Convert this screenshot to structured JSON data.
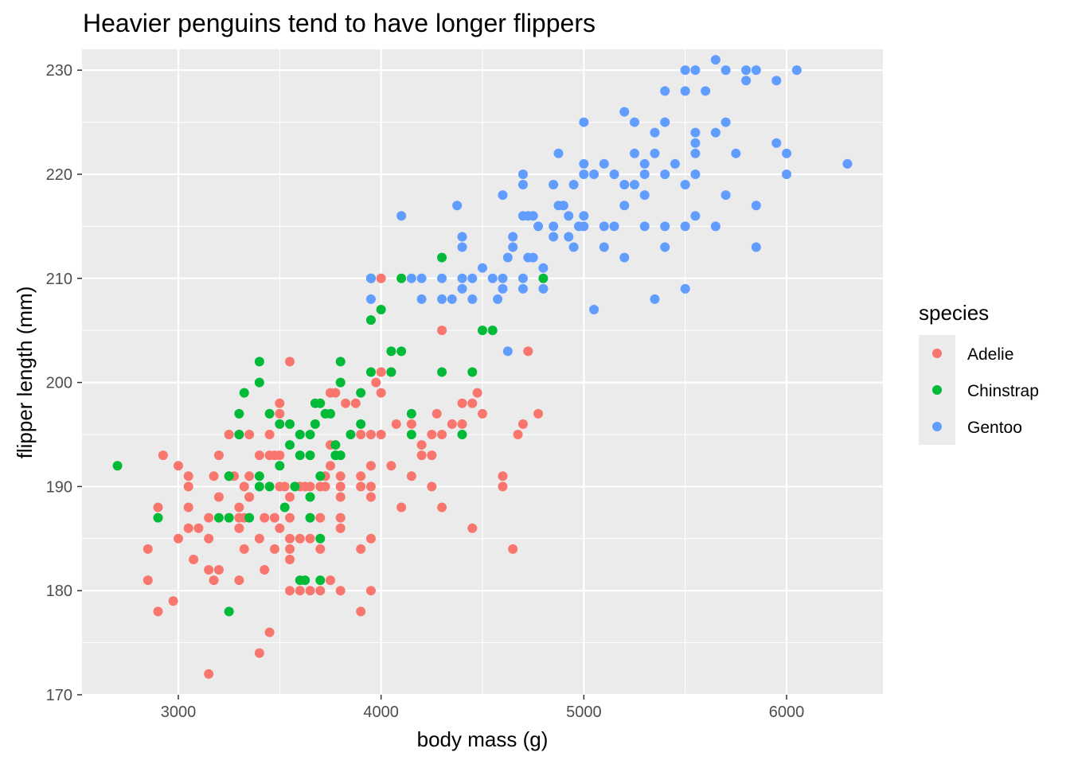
{
  "chart_data": {
    "type": "scatter",
    "title": "Heavier penguins tend to have longer flippers",
    "xlabel": "body mass (g)",
    "ylabel": "flipper length (mm)",
    "xlim": [
      2525,
      6475
    ],
    "ylim": [
      170,
      232
    ],
    "x_ticks": [
      3000,
      4000,
      5000,
      6000
    ],
    "x_tick_labels": [
      "3000",
      "4000",
      "5000",
      "6000"
    ],
    "y_ticks": [
      170,
      180,
      190,
      200,
      210,
      220,
      230
    ],
    "y_tick_labels": [
      "170",
      "180",
      "190",
      "200",
      "210",
      "220",
      "230"
    ],
    "x_minor_ticks": [
      2500,
      3500,
      4500,
      5500,
      6500
    ],
    "y_minor_ticks": [
      175,
      185,
      195,
      205,
      215,
      225
    ],
    "grid": true,
    "legend": {
      "title": "species",
      "position": "right",
      "entries": [
        "Adelie",
        "Chinstrap",
        "Gentoo"
      ]
    },
    "colors": {
      "panel_background": "#ebebeb",
      "grid": "#ffffff",
      "Adelie": "#f8766d",
      "Chinstrap": "#00ba38",
      "Gentoo": "#619cff"
    },
    "series": [
      {
        "name": "Adelie",
        "points": [
          [
            2850,
            184
          ],
          [
            2850,
            181
          ],
          [
            2900,
            178
          ],
          [
            2900,
            188
          ],
          [
            2925,
            193
          ],
          [
            2975,
            179
          ],
          [
            3000,
            185
          ],
          [
            3000,
            192
          ],
          [
            3050,
            186
          ],
          [
            3050,
            188
          ],
          [
            3050,
            190
          ],
          [
            3050,
            191
          ],
          [
            3075,
            183
          ],
          [
            3100,
            186
          ],
          [
            3150,
            187
          ],
          [
            3150,
            185
          ],
          [
            3150,
            182
          ],
          [
            3150,
            172
          ],
          [
            3175,
            191
          ],
          [
            3175,
            181
          ],
          [
            3200,
            189
          ],
          [
            3200,
            193
          ],
          [
            3200,
            182
          ],
          [
            3250,
            195
          ],
          [
            3250,
            191
          ],
          [
            3275,
            191
          ],
          [
            3300,
            186
          ],
          [
            3300,
            187
          ],
          [
            3300,
            188
          ],
          [
            3300,
            195
          ],
          [
            3300,
            181
          ],
          [
            3325,
            184
          ],
          [
            3325,
            190
          ],
          [
            3325,
            187
          ],
          [
            3350,
            189
          ],
          [
            3350,
            191
          ],
          [
            3350,
            195
          ],
          [
            3350,
            189
          ],
          [
            3400,
            193
          ],
          [
            3400,
            185
          ],
          [
            3400,
            174
          ],
          [
            3425,
            187
          ],
          [
            3425,
            182
          ],
          [
            3450,
            176
          ],
          [
            3450,
            195
          ],
          [
            3450,
            193
          ],
          [
            3475,
            193
          ],
          [
            3475,
            184
          ],
          [
            3475,
            187
          ],
          [
            3500,
            193
          ],
          [
            3500,
            186
          ],
          [
            3500,
            198
          ],
          [
            3500,
            197
          ],
          [
            3500,
            190
          ],
          [
            3525,
            190
          ],
          [
            3550,
            180
          ],
          [
            3550,
            183
          ],
          [
            3550,
            184
          ],
          [
            3550,
            185
          ],
          [
            3550,
            187
          ],
          [
            3550,
            189
          ],
          [
            3550,
            202
          ],
          [
            3600,
            185
          ],
          [
            3600,
            190
          ],
          [
            3600,
            180
          ],
          [
            3625,
            190
          ],
          [
            3650,
            190
          ],
          [
            3650,
            185
          ],
          [
            3650,
            180
          ],
          [
            3700,
            190
          ],
          [
            3700,
            187
          ],
          [
            3700,
            180
          ],
          [
            3700,
            184
          ],
          [
            3725,
            190
          ],
          [
            3725,
            191
          ],
          [
            3750,
            192
          ],
          [
            3750,
            181
          ],
          [
            3750,
            194
          ],
          [
            3750,
            199
          ],
          [
            3775,
            193
          ],
          [
            3775,
            199
          ],
          [
            3800,
            186
          ],
          [
            3800,
            187
          ],
          [
            3800,
            189
          ],
          [
            3800,
            190
          ],
          [
            3800,
            191
          ],
          [
            3800,
            180
          ],
          [
            3825,
            198
          ],
          [
            3875,
            198
          ],
          [
            3900,
            178
          ],
          [
            3900,
            184
          ],
          [
            3900,
            190
          ],
          [
            3900,
            191
          ],
          [
            3900,
            195
          ],
          [
            3950,
            180
          ],
          [
            3950,
            185
          ],
          [
            3950,
            189
          ],
          [
            3950,
            190
          ],
          [
            3950,
            192
          ],
          [
            3950,
            195
          ],
          [
            3975,
            200
          ],
          [
            4000,
            201
          ],
          [
            4000,
            195
          ],
          [
            4000,
            199
          ],
          [
            4000,
            210
          ],
          [
            4050,
            192
          ],
          [
            4050,
            201
          ],
          [
            4075,
            196
          ],
          [
            4100,
            188
          ],
          [
            4150,
            191
          ],
          [
            4150,
            196
          ],
          [
            4200,
            193
          ],
          [
            4200,
            194
          ],
          [
            4250,
            193
          ],
          [
            4250,
            195
          ],
          [
            4250,
            190
          ],
          [
            4275,
            197
          ],
          [
            4300,
            205
          ],
          [
            4300,
            195
          ],
          [
            4300,
            188
          ],
          [
            4350,
            196
          ],
          [
            4400,
            196
          ],
          [
            4400,
            198
          ],
          [
            4450,
            186
          ],
          [
            4450,
            198
          ],
          [
            4475,
            199
          ],
          [
            4500,
            197
          ],
          [
            4600,
            190
          ],
          [
            4600,
            191
          ],
          [
            4650,
            184
          ],
          [
            4675,
            195
          ],
          [
            4700,
            196
          ],
          [
            4725,
            203
          ],
          [
            4775,
            197
          ]
        ]
      },
      {
        "name": "Chinstrap",
        "points": [
          [
            2700,
            192
          ],
          [
            2900,
            187
          ],
          [
            3200,
            187
          ],
          [
            3250,
            191
          ],
          [
            3250,
            187
          ],
          [
            3250,
            178
          ],
          [
            3300,
            195
          ],
          [
            3300,
            197
          ],
          [
            3325,
            199
          ],
          [
            3350,
            187
          ],
          [
            3400,
            190
          ],
          [
            3400,
            191
          ],
          [
            3400,
            200
          ],
          [
            3400,
            202
          ],
          [
            3450,
            190
          ],
          [
            3450,
            197
          ],
          [
            3500,
            192
          ],
          [
            3500,
            196
          ],
          [
            3525,
            188
          ],
          [
            3550,
            194
          ],
          [
            3550,
            196
          ],
          [
            3575,
            190
          ],
          [
            3600,
            181
          ],
          [
            3600,
            195
          ],
          [
            3600,
            193
          ],
          [
            3625,
            181
          ],
          [
            3650,
            193
          ],
          [
            3650,
            189
          ],
          [
            3650,
            187
          ],
          [
            3650,
            195
          ],
          [
            3675,
            198
          ],
          [
            3675,
            196
          ],
          [
            3700,
            198
          ],
          [
            3700,
            191
          ],
          [
            3700,
            185
          ],
          [
            3700,
            181
          ],
          [
            3725,
            197
          ],
          [
            3750,
            197
          ],
          [
            3775,
            193
          ],
          [
            3775,
            194
          ],
          [
            3800,
            193
          ],
          [
            3800,
            200
          ],
          [
            3800,
            202
          ],
          [
            3850,
            195
          ],
          [
            3900,
            196
          ],
          [
            3900,
            199
          ],
          [
            3950,
            201
          ],
          [
            3950,
            210
          ],
          [
            3950,
            206
          ],
          [
            4000,
            207
          ],
          [
            4050,
            201
          ],
          [
            4050,
            203
          ],
          [
            4100,
            203
          ],
          [
            4100,
            210
          ],
          [
            4150,
            195
          ],
          [
            4150,
            197
          ],
          [
            4300,
            201
          ],
          [
            4300,
            212
          ],
          [
            4400,
            195
          ],
          [
            4450,
            201
          ],
          [
            4500,
            205
          ],
          [
            4550,
            205
          ],
          [
            4800,
            210
          ]
        ]
      },
      {
        "name": "Gentoo",
        "points": [
          [
            3950,
            208
          ],
          [
            3950,
            210
          ],
          [
            4100,
            216
          ],
          [
            4150,
            210
          ],
          [
            4200,
            208
          ],
          [
            4200,
            210
          ],
          [
            4300,
            208
          ],
          [
            4300,
            210
          ],
          [
            4350,
            208
          ],
          [
            4375,
            217
          ],
          [
            4400,
            209
          ],
          [
            4400,
            210
          ],
          [
            4400,
            213
          ],
          [
            4400,
            214
          ],
          [
            4450,
            208
          ],
          [
            4450,
            210
          ],
          [
            4500,
            211
          ],
          [
            4550,
            210
          ],
          [
            4575,
            208
          ],
          [
            4600,
            209
          ],
          [
            4600,
            210
          ],
          [
            4600,
            218
          ],
          [
            4625,
            203
          ],
          [
            4625,
            212
          ],
          [
            4650,
            214
          ],
          [
            4650,
            213
          ],
          [
            4700,
            209
          ],
          [
            4700,
            210
          ],
          [
            4700,
            216
          ],
          [
            4700,
            219
          ],
          [
            4700,
            220
          ],
          [
            4725,
            212
          ],
          [
            4725,
            216
          ],
          [
            4750,
            216
          ],
          [
            4750,
            212
          ],
          [
            4775,
            215
          ],
          [
            4800,
            211
          ],
          [
            4800,
            209
          ],
          [
            4850,
            215
          ],
          [
            4850,
            214
          ],
          [
            4850,
            219
          ],
          [
            4875,
            222
          ],
          [
            4875,
            217
          ],
          [
            4900,
            217
          ],
          [
            4925,
            214
          ],
          [
            4925,
            216
          ],
          [
            4950,
            213
          ],
          [
            4950,
            219
          ],
          [
            4975,
            215
          ],
          [
            5000,
            215
          ],
          [
            5000,
            216
          ],
          [
            5000,
            220
          ],
          [
            5000,
            221
          ],
          [
            5000,
            225
          ],
          [
            5050,
            207
          ],
          [
            5050,
            220
          ],
          [
            5100,
            213
          ],
          [
            5100,
            215
          ],
          [
            5100,
            221
          ],
          [
            5150,
            215
          ],
          [
            5150,
            220
          ],
          [
            5200,
            212
          ],
          [
            5200,
            217
          ],
          [
            5200,
            219
          ],
          [
            5200,
            226
          ],
          [
            5250,
            222
          ],
          [
            5250,
            219
          ],
          [
            5250,
            225
          ],
          [
            5300,
            215
          ],
          [
            5300,
            220
          ],
          [
            5300,
            221
          ],
          [
            5300,
            218
          ],
          [
            5350,
            208
          ],
          [
            5350,
            222
          ],
          [
            5350,
            224
          ],
          [
            5400,
            213
          ],
          [
            5400,
            215
          ],
          [
            5400,
            220
          ],
          [
            5400,
            225
          ],
          [
            5400,
            228
          ],
          [
            5450,
            221
          ],
          [
            5500,
            209
          ],
          [
            5500,
            215
          ],
          [
            5500,
            219
          ],
          [
            5500,
            228
          ],
          [
            5500,
            230
          ],
          [
            5550,
            216
          ],
          [
            5550,
            220
          ],
          [
            5550,
            222
          ],
          [
            5550,
            223
          ],
          [
            5550,
            224
          ],
          [
            5550,
            230
          ],
          [
            5600,
            228
          ],
          [
            5650,
            215
          ],
          [
            5650,
            224
          ],
          [
            5650,
            231
          ],
          [
            5700,
            218
          ],
          [
            5700,
            225
          ],
          [
            5700,
            230
          ],
          [
            5750,
            222
          ],
          [
            5800,
            229
          ],
          [
            5800,
            230
          ],
          [
            5850,
            213
          ],
          [
            5850,
            217
          ],
          [
            5850,
            230
          ],
          [
            5950,
            223
          ],
          [
            5950,
            229
          ],
          [
            6000,
            220
          ],
          [
            6000,
            222
          ],
          [
            6050,
            230
          ],
          [
            6300,
            221
          ]
        ]
      }
    ]
  }
}
